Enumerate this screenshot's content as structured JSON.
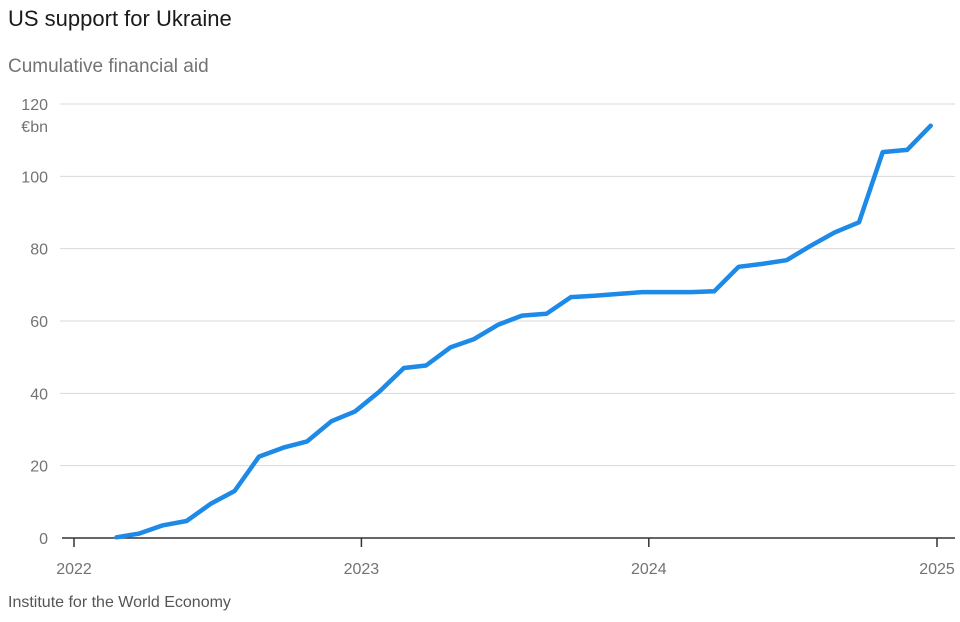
{
  "chart_data": {
    "type": "line",
    "title": "US support for Ukraine",
    "subtitle": "Cumulative financial aid",
    "ylabel": "€bn",
    "source": "Institute for the World Economy",
    "ylim": [
      0,
      120
    ],
    "yticks": [
      0,
      20,
      40,
      60,
      80,
      100,
      120
    ],
    "xlim": [
      "2022-01-01",
      "2025-01-01"
    ],
    "xticks": [
      "2022-01-01",
      "2023-01-01",
      "2024-01-01",
      "2025-01-01"
    ],
    "xtick_labels": [
      "2022",
      "2023",
      "2024",
      "2025"
    ],
    "grid": true,
    "color": "#1c8ae6",
    "series": [
      {
        "x": [
          "2022-02-24",
          "2022-03-24",
          "2022-04-24",
          "2022-05-24",
          "2022-06-24",
          "2022-07-24",
          "2022-08-24",
          "2022-09-24",
          "2022-10-24",
          "2022-11-24",
          "2022-12-24",
          "2023-01-24",
          "2023-02-24",
          "2023-03-24",
          "2023-04-24",
          "2023-05-24",
          "2023-06-24",
          "2023-07-24",
          "2023-08-24",
          "2023-09-24",
          "2023-10-24",
          "2023-11-24",
          "2023-12-24",
          "2024-01-24",
          "2024-02-24",
          "2024-03-24",
          "2024-04-24",
          "2024-05-24",
          "2024-06-24",
          "2024-07-24",
          "2024-08-24",
          "2024-09-24",
          "2024-10-24",
          "2024-11-24",
          "2024-12-24"
        ],
        "values": [
          0.2,
          1.2,
          3.5,
          4.7,
          9.5,
          13,
          22.5,
          25,
          26.7,
          32.3,
          35,
          40.5,
          47,
          47.7,
          52.7,
          55,
          59,
          61.5,
          62,
          66.6,
          67,
          67.5,
          68,
          68,
          68,
          68.2,
          75,
          75.8,
          76.8,
          80.7,
          84.5,
          87.3,
          106.7,
          107.3,
          114
        ]
      }
    ]
  }
}
